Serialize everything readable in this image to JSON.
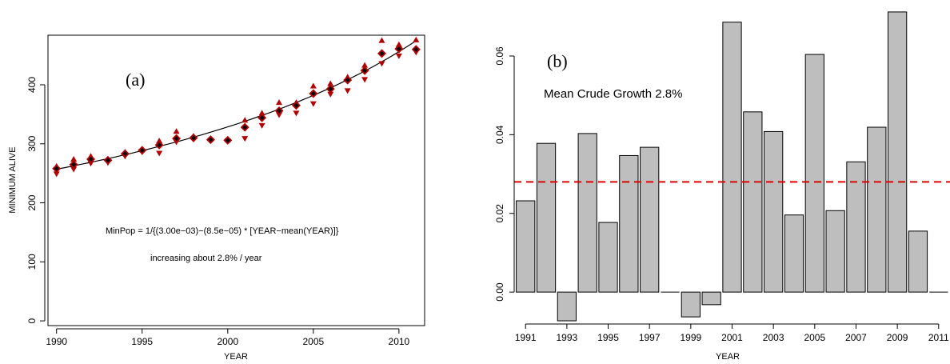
{
  "chart_data": [
    {
      "type": "scatter",
      "panel_label": "(a)",
      "xlabel": "YEAR",
      "ylabel": "MINIMUM ALIVE",
      "xlim": [
        1989.5,
        2011.5
      ],
      "ylim": [
        -8,
        484
      ],
      "xticks": [
        1990,
        1995,
        2000,
        2005,
        2010
      ],
      "yticks": [
        0,
        100,
        200,
        300,
        400
      ],
      "annotations": [
        "MinPop = 1/{(3.00e−03)−(8.5e−05) * [YEAR−mean(YEAR)]}",
        "increasing about 2.8% / year"
      ],
      "colors": {
        "point_fill": "#b20000",
        "mean_marker": "#000000",
        "fit_line": "#000000"
      },
      "series": [
        {
          "x": [
            1990,
            1991,
            1992,
            1993,
            1994,
            1995,
            1996,
            1997,
            1998,
            1999,
            2000,
            2001,
            2002,
            2003,
            2004,
            2005,
            2006,
            2007,
            2008,
            2009,
            2010,
            2011
          ],
          "values": [
            258,
            265,
            274,
            272,
            283,
            289,
            298,
            309,
            310,
            307,
            306,
            328,
            344,
            356,
            365,
            385,
            393,
            408,
            424,
            453,
            461,
            460
          ]
        },
        {
          "x": [
            1990,
            1991,
            1992,
            1993,
            1994,
            1995,
            1996,
            1997,
            1998,
            1999,
            2000,
            2001,
            2002,
            2003,
            2004,
            2005,
            2006,
            2007,
            2008,
            2009,
            2010,
            2011
          ],
          "values": [
            262,
            274,
            279,
            274,
            286,
            291,
            305,
            321,
            313,
            309,
            307,
            340,
            352,
            370,
            370,
            398,
            402,
            413,
            433,
            475,
            468,
            476
          ]
        },
        {
          "x": [
            1990,
            1991,
            1992,
            1993,
            1994,
            1995,
            1996,
            1997,
            1998,
            1999,
            2000,
            2001,
            2002,
            2003,
            2004,
            2005,
            2006,
            2007,
            2008,
            2009,
            2010,
            2011
          ],
          "values": [
            249,
            257,
            267,
            268,
            279,
            286,
            284,
            303,
            308,
            306,
            305,
            309,
            331,
            349,
            352,
            368,
            384,
            390,
            409,
            436,
            449,
            455
          ]
        },
        {
          "x": [
            1990,
            1991,
            1992,
            1993,
            1994,
            1995,
            1996,
            1997,
            1998,
            1999,
            2000,
            2001,
            2002,
            2003,
            2004,
            2005,
            2006,
            2007,
            2008,
            2009,
            2010,
            2011
          ],
          "values": [
            258,
            265,
            274,
            272,
            283,
            289,
            298,
            309,
            310,
            307,
            306,
            328,
            344,
            356,
            365,
            385,
            393,
            408,
            424,
            453,
            461,
            460
          ]
        }
      ]
    },
    {
      "type": "bar",
      "panel_label": "(b)",
      "xlabel": "YEAR",
      "ylabel": "",
      "xlim": [
        1990.45,
        2011.55
      ],
      "ylim": [
        -0.0075,
        0.0722
      ],
      "xticks": [
        "1991",
        "1993",
        "1995",
        "1997",
        "1999",
        "2001",
        "2003",
        "2005",
        "2007",
        "2009",
        "2011"
      ],
      "yticks": [
        "0.00",
        "0.02",
        "0.04",
        "0.06"
      ],
      "annotation": "Mean Crude Growth 2.8%",
      "reference_line": 0.028,
      "colors": {
        "bar_fill": "#bebebe",
        "bar_stroke": "#000000",
        "reference_line": "#e00000"
      },
      "categories": [
        1991,
        1992,
        1993,
        1994,
        1995,
        1996,
        1997,
        1998,
        1999,
        2000,
        2001,
        2002,
        2003,
        2004,
        2005,
        2006,
        2007,
        2008,
        2009,
        2010,
        2011
      ],
      "values": [
        0.0232,
        0.0378,
        -0.0073,
        0.0403,
        0.0177,
        0.0347,
        0.0368,
        0.0,
        -0.0063,
        -0.0032,
        0.0686,
        0.0458,
        0.0408,
        0.0196,
        0.0604,
        0.0207,
        0.0331,
        0.0419,
        0.0712,
        0.0155,
        0.0
      ]
    }
  ]
}
